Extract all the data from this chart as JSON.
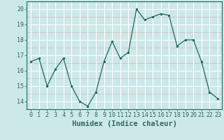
{
  "x": [
    0,
    1,
    2,
    3,
    4,
    5,
    6,
    7,
    8,
    9,
    10,
    11,
    12,
    13,
    14,
    15,
    16,
    17,
    18,
    19,
    20,
    21,
    22,
    23
  ],
  "y": [
    16.6,
    16.8,
    15.0,
    16.1,
    16.8,
    15.0,
    14.0,
    13.7,
    14.6,
    16.6,
    17.9,
    16.8,
    17.2,
    20.0,
    19.3,
    19.5,
    19.7,
    19.6,
    17.6,
    18.0,
    18.0,
    16.6,
    14.6,
    14.2
  ],
  "xlabel": "Humidex (Indice chaleur)",
  "bg_color": "#cce8e8",
  "plot_bg_color": "#cce8e8",
  "line_color": "#1a6b5a",
  "marker_color": "#1a6b5a",
  "grid_white_color": "#ffffff",
  "grid_pink_color": "#dbbcbc",
  "ylim": [
    13.5,
    20.5
  ],
  "xlim": [
    -0.5,
    23.5
  ],
  "yticks": [
    14,
    15,
    16,
    17,
    18,
    19,
    20
  ],
  "xticks": [
    0,
    1,
    2,
    3,
    4,
    5,
    6,
    7,
    8,
    9,
    10,
    11,
    12,
    13,
    14,
    15,
    16,
    17,
    18,
    19,
    20,
    21,
    22,
    23
  ],
  "tick_color": "#2e6b5e",
  "xlabel_fontsize": 7.5,
  "tick_fontsize": 6.0
}
